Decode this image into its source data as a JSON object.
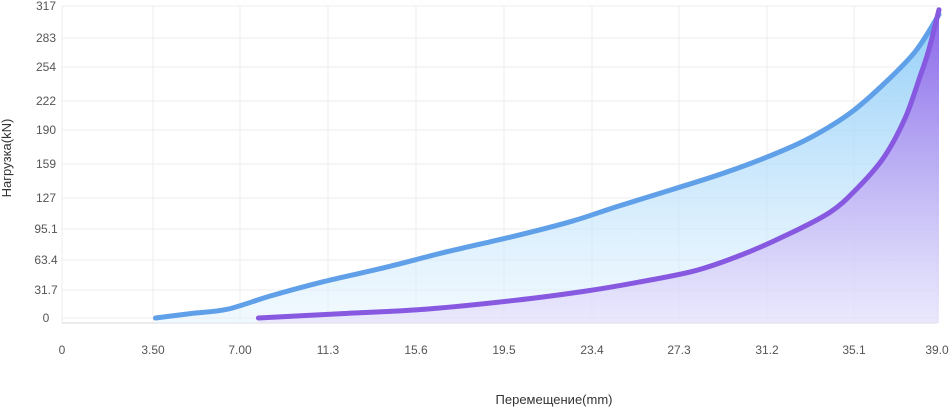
{
  "chart_data": {
    "type": "area",
    "xlabel": "Перемещение(mm)",
    "ylabel": "Нагрузка(kN)",
    "x_ticks": [
      "0",
      "3.50",
      "7.00",
      "11.3",
      "15.6",
      "19.5",
      "23.4",
      "27.3",
      "31.2",
      "35.1",
      "39.0"
    ],
    "y_ticks": [
      "0",
      "31.7",
      "63.4",
      "95.1",
      "127",
      "159",
      "190",
      "222",
      "254",
      "283",
      "317"
    ],
    "xlim": [
      0,
      39.0
    ],
    "ylim": [
      0,
      317
    ],
    "grid": true,
    "series": [
      {
        "color": "#5fa0e8",
        "fill_color": "#a9d6fb",
        "x": [
          3.6,
          5.0,
          6.5,
          8.5,
          11.0,
          14.0,
          17.0,
          20.0,
          22.5,
          24.5,
          27.0,
          29.5,
          32.0,
          33.5,
          35.0,
          36.5,
          38.0,
          39.1
        ],
        "y": [
          0,
          5,
          10,
          25,
          40,
          55,
          72,
          88,
          103,
          118,
          135,
          152,
          172,
          187,
          210,
          238,
          270,
          308
        ]
      },
      {
        "color": "#8758e0",
        "fill_color": "#9c7cf0",
        "x": [
          7.9,
          12.0,
          16.0,
          20.0,
          23.0,
          25.5,
          28.0,
          30.0,
          32.0,
          34.0,
          35.2,
          36.5,
          37.5,
          38.2,
          38.6,
          39.3
        ],
        "y": [
          0,
          5,
          10,
          20,
          30,
          40,
          52,
          68,
          88,
          112,
          135,
          165,
          203,
          245,
          270,
          313
        ]
      }
    ]
  }
}
